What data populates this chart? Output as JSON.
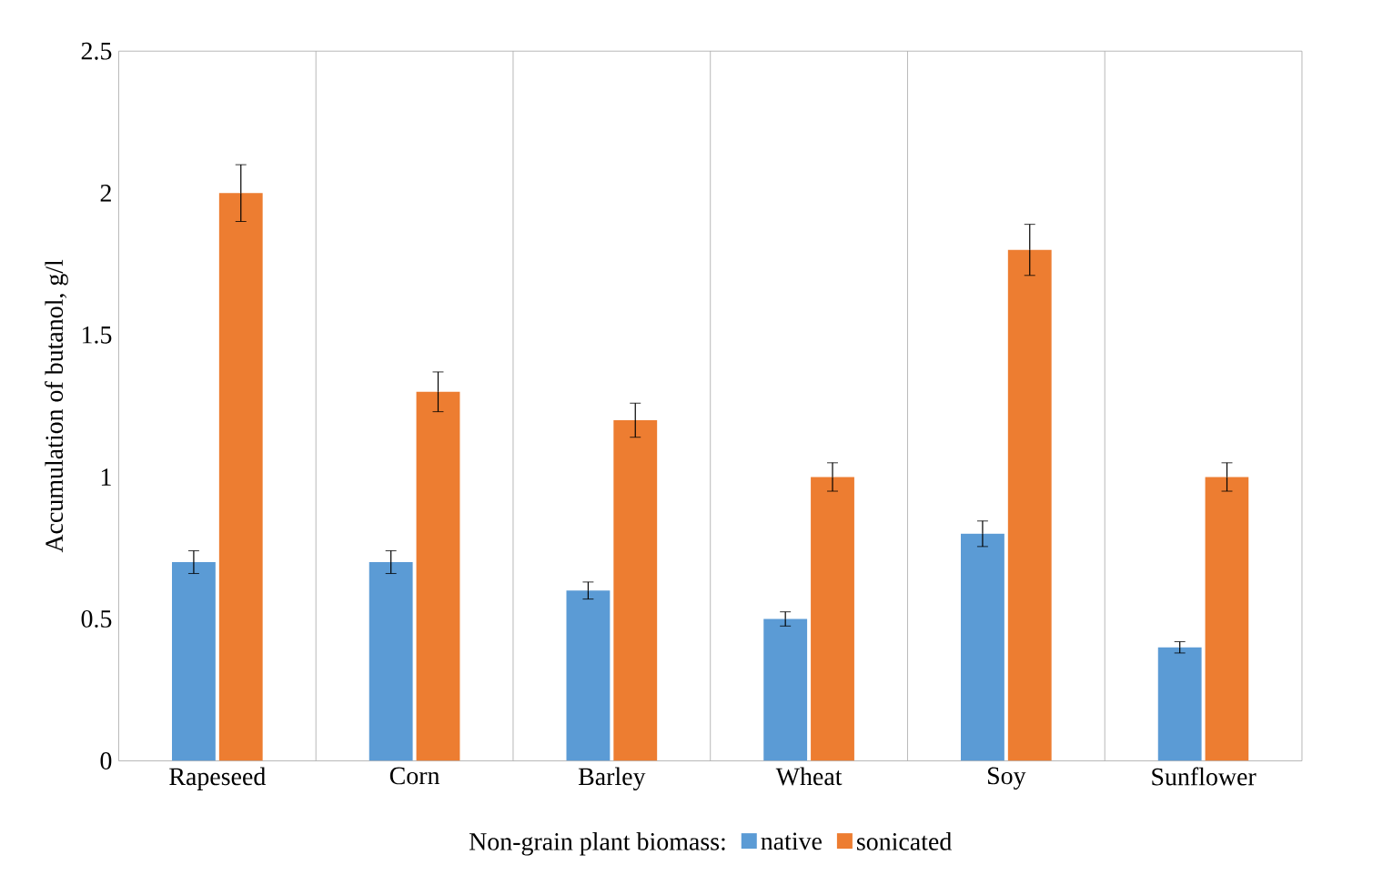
{
  "chart_data": {
    "type": "bar",
    "ylabel": "Accumulation of butanol, g/l",
    "legend_title": "Non-grain plant biomass:",
    "legend": "bottom",
    "grid": "x",
    "categories": [
      "Rapeseed",
      "Corn",
      "Barley",
      "Wheat",
      "Soy",
      "Sunflower"
    ],
    "ylim": [
      0,
      2.5
    ],
    "yticks": [
      0,
      0.5,
      1,
      1.5,
      2,
      2.5
    ],
    "series": [
      {
        "name": "native",
        "color": "#5b9bd5",
        "values": [
          0.7,
          0.7,
          0.6,
          0.5,
          0.8,
          0.4
        ],
        "errors": [
          0.04,
          0.04,
          0.03,
          0.025,
          0.045,
          0.02
        ]
      },
      {
        "name": "sonicated",
        "color": "#ed7d31",
        "values": [
          2.0,
          1.3,
          1.2,
          1.0,
          1.8,
          1.0
        ],
        "errors": [
          0.1,
          0.07,
          0.06,
          0.05,
          0.09,
          0.05
        ]
      }
    ]
  }
}
